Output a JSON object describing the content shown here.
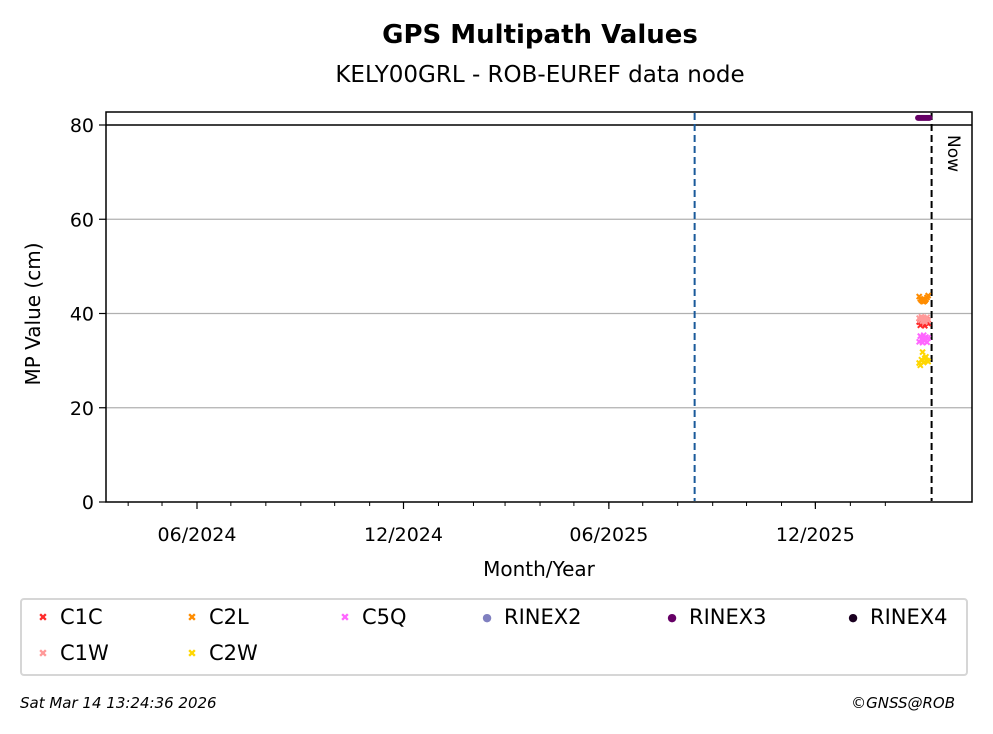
{
  "chart_data": {
    "type": "scatter",
    "title": "GPS Multipath Values",
    "subtitle": "KELY00GRL - ROB-EUREF data node",
    "xlabel": "Month/Year",
    "ylabel": "MP Value (cm)",
    "xlim": [
      "2024-03-12",
      "2026-04-19"
    ],
    "ylim": [
      0,
      82.8
    ],
    "yticks": [
      0,
      20,
      40,
      60,
      80
    ],
    "xticks": [
      {
        "date": "2024-06-01",
        "label": "06/2024"
      },
      {
        "date": "2024-12-01",
        "label": "12/2024"
      },
      {
        "date": "2025-06-01",
        "label": "06/2025"
      },
      {
        "date": "2025-12-01",
        "label": "12/2025"
      }
    ],
    "grid": "y",
    "hline": 80,
    "vline_blue": "2025-08-16",
    "now": {
      "date": "2026-03-14",
      "label": "Now"
    },
    "legend_placement": "bottom",
    "series": [
      {
        "name": "C1C",
        "marker": "x",
        "color": "#ff2a2a",
        "dates": [
          "2026-03-03",
          "2026-03-04",
          "2026-03-05",
          "2026-03-06",
          "2026-03-07",
          "2026-03-08",
          "2026-03-09",
          "2026-03-10",
          "2026-03-11"
        ],
        "values": [
          38.2,
          37.5,
          38.8,
          37.8,
          38.5,
          37.4,
          38.0,
          38.6,
          37.9
        ]
      },
      {
        "name": "C1W",
        "marker": "x",
        "color": "#ff9999",
        "dates": [
          "2026-03-03",
          "2026-03-04",
          "2026-03-05",
          "2026-03-06",
          "2026-03-07",
          "2026-03-08",
          "2026-03-09",
          "2026-03-10",
          "2026-03-11"
        ],
        "values": [
          39.0,
          38.6,
          39.3,
          38.4,
          39.1,
          38.2,
          38.9,
          39.2,
          38.5
        ]
      },
      {
        "name": "C2L",
        "marker": "x",
        "color": "#ff8c00",
        "dates": [
          "2026-03-03",
          "2026-03-04",
          "2026-03-05",
          "2026-03-06",
          "2026-03-07",
          "2026-03-08",
          "2026-03-09",
          "2026-03-10",
          "2026-03-11"
        ],
        "values": [
          43.6,
          43.1,
          42.8,
          42.6,
          42.5,
          42.7,
          43.0,
          43.4,
          43.8
        ]
      },
      {
        "name": "C5Q",
        "marker": "x",
        "color": "#ff66ff",
        "dates": [
          "2026-03-03",
          "2026-03-04",
          "2026-03-05",
          "2026-03-06",
          "2026-03-07",
          "2026-03-08",
          "2026-03-09",
          "2026-03-10",
          "2026-03-11"
        ],
        "values": [
          34.0,
          35.2,
          34.6,
          33.8,
          35.4,
          34.2,
          35.0,
          33.9,
          34.8
        ]
      },
      {
        "name": "C2W",
        "marker": "x",
        "color": "#ffd700",
        "dates": [
          "2026-03-03",
          "2026-03-04",
          "2026-03-05",
          "2026-03-06",
          "2026-03-07",
          "2026-03-08",
          "2026-03-09",
          "2026-03-10",
          "2026-03-11"
        ],
        "values": [
          29.5,
          29.0,
          30.2,
          31.8,
          29.6,
          30.5,
          30.8,
          30.0,
          29.8
        ]
      },
      {
        "name": "RINEX2",
        "marker": "o",
        "color": "#8080c0",
        "dates": [],
        "values": []
      },
      {
        "name": "RINEX3",
        "marker": "o",
        "color": "#660066",
        "dates": [
          "2026-03-02",
          "2026-03-03",
          "2026-03-04",
          "2026-03-05",
          "2026-03-06",
          "2026-03-07",
          "2026-03-08",
          "2026-03-09",
          "2026-03-10",
          "2026-03-11",
          "2026-03-12"
        ],
        "values": [
          81.5,
          81.5,
          81.5,
          81.5,
          81.5,
          81.5,
          81.5,
          81.5,
          81.5,
          81.5,
          81.5
        ]
      },
      {
        "name": "RINEX4",
        "marker": "o",
        "color": "#1a0020",
        "dates": [],
        "values": []
      }
    ]
  },
  "footer": {
    "timestamp": "Sat Mar 14 13:24:36 2026",
    "copyright": "©GNSS@ROB"
  }
}
